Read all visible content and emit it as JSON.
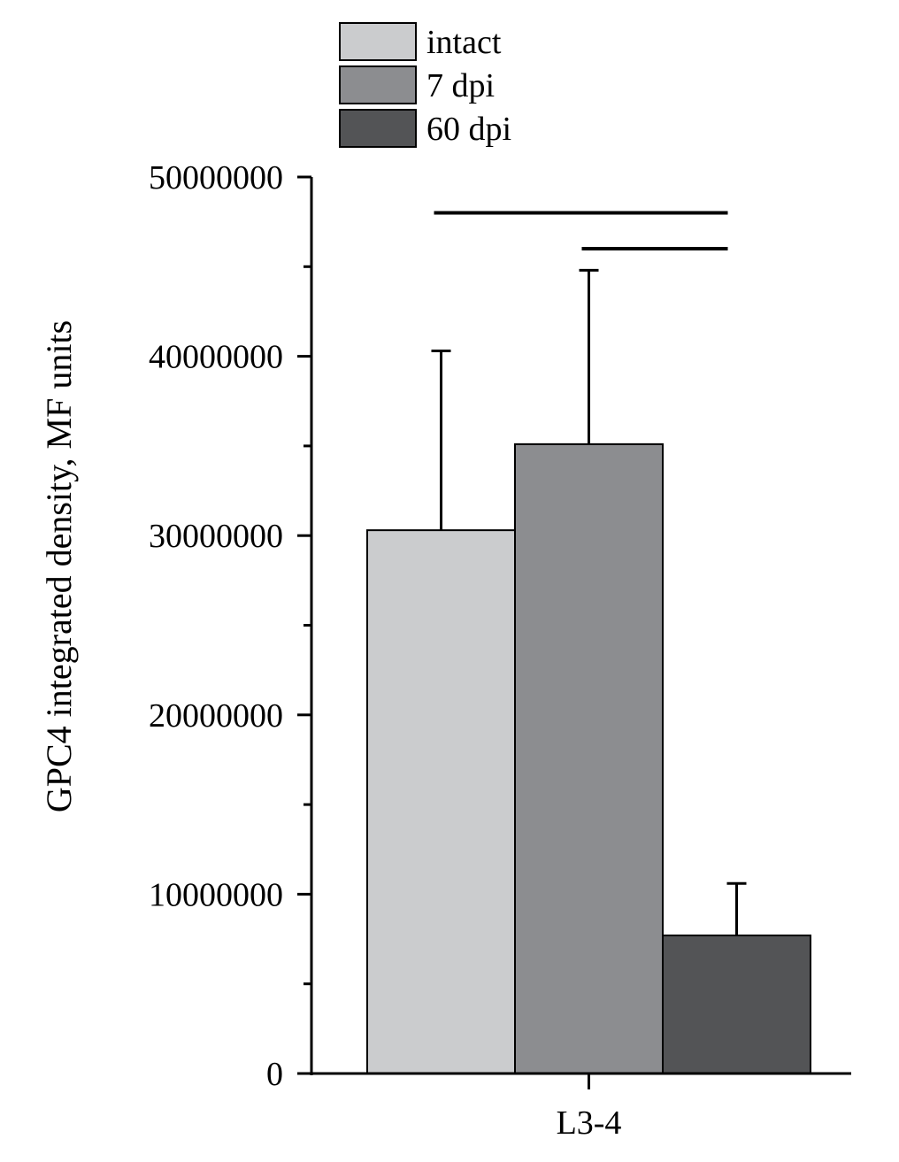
{
  "chart_data": {
    "type": "bar",
    "title": "",
    "xlabel": "",
    "ylabel": "GPC4  integrated density, MF units",
    "categories": [
      "L3-4"
    ],
    "ylim": [
      0,
      50000000
    ],
    "yticks": [
      0,
      10000000,
      20000000,
      30000000,
      40000000,
      50000000
    ],
    "ytick_labels": [
      "0",
      "10000000",
      "20000000",
      "30000000",
      "40000000",
      "50000000"
    ],
    "minor_ticks": [
      5000000,
      15000000,
      25000000,
      35000000,
      45000000
    ],
    "legend": {
      "placement": "top"
    },
    "grid": false,
    "series": [
      {
        "name": "intact",
        "values": [
          30300000
        ],
        "error": [
          10000000
        ],
        "color": "#cbccce"
      },
      {
        "name": "7 dpi",
        "values": [
          35100000
        ],
        "error": [
          9700000
        ],
        "color": "#8c8d90"
      },
      {
        "name": "60 dpi",
        "values": [
          7700000
        ],
        "error": [
          2900000
        ],
        "color": "#535456"
      }
    ],
    "significance": [
      {
        "from": "intact",
        "to": "60 dpi",
        "y": 48000000
      },
      {
        "from": "7 dpi",
        "to": "60 dpi",
        "y": 46000000
      }
    ]
  }
}
